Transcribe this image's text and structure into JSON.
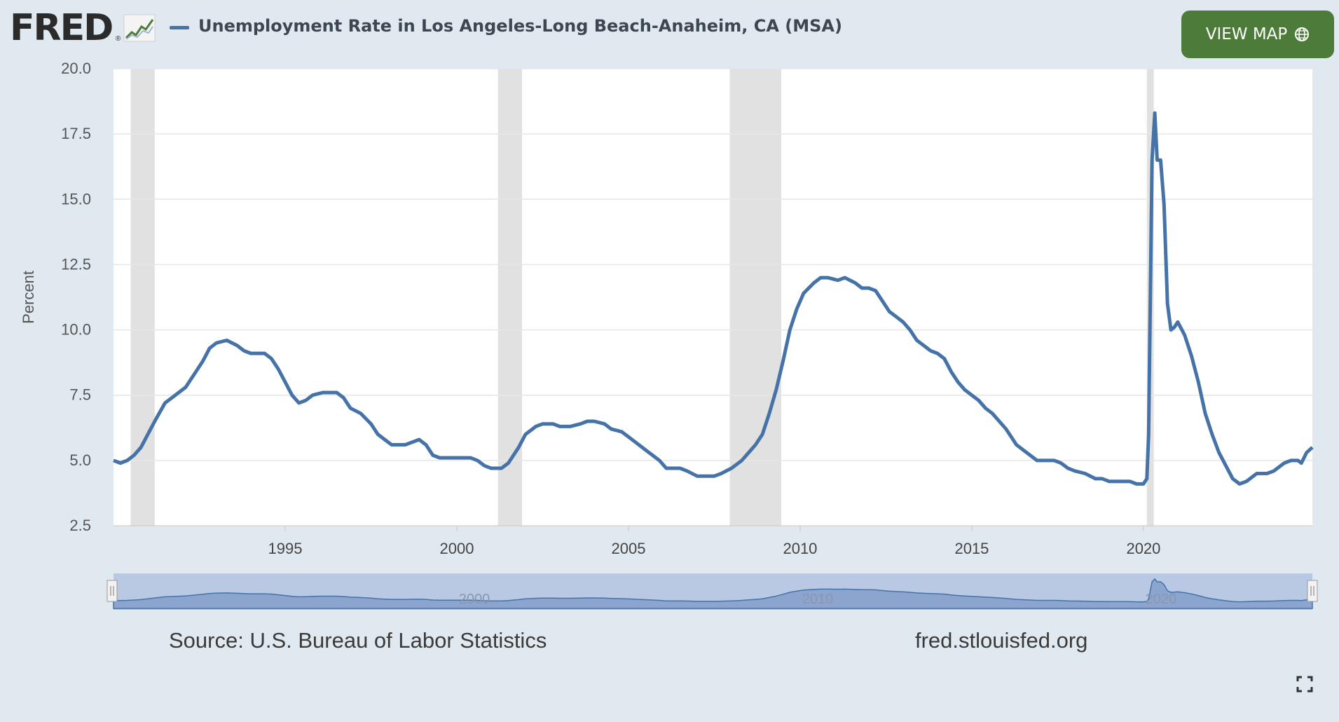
{
  "header": {
    "logo_text": "FRED",
    "logo_reg": "®",
    "title": "Unemployment Rate in Los Angeles-Long Beach-Anaheim, CA (MSA)",
    "view_map_label": "VIEW MAP"
  },
  "footer": {
    "source": "Source: U.S. Bureau of Labor Statistics",
    "site": "fred.stlouisfed.org"
  },
  "colors": {
    "series": "#4572a7",
    "recession": "#e1e1e1",
    "button": "#4d7b3a",
    "background": "#e1e9f0"
  },
  "icons": {
    "logo_graph": "line-graph-icon",
    "globe": "globe-icon",
    "fullscreen": "fullscreen-icon"
  },
  "chart_data": {
    "type": "line",
    "title": "Unemployment Rate in Los Angeles-Long Beach-Anaheim, CA (MSA)",
    "ylabel": "Percent",
    "xlabel": "",
    "ylim": [
      2.5,
      20.0
    ],
    "xlim": [
      1990.0,
      2024.92
    ],
    "yticks": [
      2.5,
      5.0,
      7.5,
      10.0,
      12.5,
      15.0,
      17.5,
      20.0
    ],
    "ytick_labels": [
      "2.5",
      "5.0",
      "7.5",
      "10.0",
      "12.5",
      "15.0",
      "17.5",
      "20.0"
    ],
    "xticks": [
      1995,
      2000,
      2005,
      2010,
      2015,
      2020
    ],
    "xtick_labels": [
      "1995",
      "2000",
      "2005",
      "2010",
      "2015",
      "2020"
    ],
    "navigator_labels": [
      "2000",
      "2010",
      "2020"
    ],
    "recessions": [
      [
        1990.5,
        1991.2
      ],
      [
        2001.2,
        2001.9
      ],
      [
        2007.95,
        2009.45
      ],
      [
        2020.1,
        2020.3
      ]
    ],
    "series": [
      {
        "name": "Unemployment Rate in Los Angeles-Long Beach-Anaheim, CA (MSA)",
        "points": [
          [
            1990.0,
            5.0
          ],
          [
            1990.2,
            4.9
          ],
          [
            1990.4,
            5.0
          ],
          [
            1990.6,
            5.2
          ],
          [
            1990.8,
            5.5
          ],
          [
            1991.0,
            6.0
          ],
          [
            1991.2,
            6.5
          ],
          [
            1991.5,
            7.2
          ],
          [
            1991.8,
            7.5
          ],
          [
            1992.1,
            7.8
          ],
          [
            1992.4,
            8.4
          ],
          [
            1992.6,
            8.8
          ],
          [
            1992.8,
            9.3
          ],
          [
            1993.0,
            9.5
          ],
          [
            1993.3,
            9.6
          ],
          [
            1993.6,
            9.4
          ],
          [
            1993.8,
            9.2
          ],
          [
            1994.0,
            9.1
          ],
          [
            1994.4,
            9.1
          ],
          [
            1994.6,
            8.9
          ],
          [
            1994.8,
            8.5
          ],
          [
            1995.0,
            8.0
          ],
          [
            1995.2,
            7.5
          ],
          [
            1995.4,
            7.2
          ],
          [
            1995.6,
            7.3
          ],
          [
            1995.8,
            7.5
          ],
          [
            1996.1,
            7.6
          ],
          [
            1996.5,
            7.6
          ],
          [
            1996.7,
            7.4
          ],
          [
            1996.9,
            7.0
          ],
          [
            1997.2,
            6.8
          ],
          [
            1997.5,
            6.4
          ],
          [
            1997.7,
            6.0
          ],
          [
            1997.9,
            5.8
          ],
          [
            1998.1,
            5.6
          ],
          [
            1998.5,
            5.6
          ],
          [
            1998.7,
            5.7
          ],
          [
            1998.9,
            5.8
          ],
          [
            1999.1,
            5.6
          ],
          [
            1999.3,
            5.2
          ],
          [
            1999.5,
            5.1
          ],
          [
            2000.0,
            5.1
          ],
          [
            2000.4,
            5.1
          ],
          [
            2000.6,
            5.0
          ],
          [
            2000.8,
            4.8
          ],
          [
            2001.0,
            4.7
          ],
          [
            2001.3,
            4.7
          ],
          [
            2001.5,
            4.9
          ],
          [
            2001.8,
            5.5
          ],
          [
            2002.0,
            6.0
          ],
          [
            2002.3,
            6.3
          ],
          [
            2002.5,
            6.4
          ],
          [
            2002.8,
            6.4
          ],
          [
            2003.0,
            6.3
          ],
          [
            2003.3,
            6.3
          ],
          [
            2003.6,
            6.4
          ],
          [
            2003.8,
            6.5
          ],
          [
            2004.0,
            6.5
          ],
          [
            2004.3,
            6.4
          ],
          [
            2004.5,
            6.2
          ],
          [
            2004.8,
            6.1
          ],
          [
            2005.0,
            5.9
          ],
          [
            2005.3,
            5.6
          ],
          [
            2005.6,
            5.3
          ],
          [
            2005.9,
            5.0
          ],
          [
            2006.1,
            4.7
          ],
          [
            2006.5,
            4.7
          ],
          [
            2006.7,
            4.6
          ],
          [
            2007.0,
            4.4
          ],
          [
            2007.5,
            4.4
          ],
          [
            2007.7,
            4.5
          ],
          [
            2008.0,
            4.7
          ],
          [
            2008.3,
            5.0
          ],
          [
            2008.5,
            5.3
          ],
          [
            2008.7,
            5.6
          ],
          [
            2008.9,
            6.0
          ],
          [
            2009.1,
            6.8
          ],
          [
            2009.3,
            7.7
          ],
          [
            2009.5,
            8.8
          ],
          [
            2009.7,
            10.0
          ],
          [
            2009.9,
            10.8
          ],
          [
            2010.1,
            11.4
          ],
          [
            2010.4,
            11.8
          ],
          [
            2010.6,
            12.0
          ],
          [
            2010.8,
            12.0
          ],
          [
            2011.1,
            11.9
          ],
          [
            2011.3,
            12.0
          ],
          [
            2011.6,
            11.8
          ],
          [
            2011.8,
            11.6
          ],
          [
            2012.0,
            11.6
          ],
          [
            2012.2,
            11.5
          ],
          [
            2012.4,
            11.1
          ],
          [
            2012.6,
            10.7
          ],
          [
            2012.8,
            10.5
          ],
          [
            2013.0,
            10.3
          ],
          [
            2013.2,
            10.0
          ],
          [
            2013.4,
            9.6
          ],
          [
            2013.6,
            9.4
          ],
          [
            2013.8,
            9.2
          ],
          [
            2014.0,
            9.1
          ],
          [
            2014.2,
            8.9
          ],
          [
            2014.4,
            8.4
          ],
          [
            2014.6,
            8.0
          ],
          [
            2014.8,
            7.7
          ],
          [
            2015.0,
            7.5
          ],
          [
            2015.2,
            7.3
          ],
          [
            2015.4,
            7.0
          ],
          [
            2015.6,
            6.8
          ],
          [
            2015.8,
            6.5
          ],
          [
            2016.0,
            6.2
          ],
          [
            2016.3,
            5.6
          ],
          [
            2016.6,
            5.3
          ],
          [
            2016.9,
            5.0
          ],
          [
            2017.2,
            5.0
          ],
          [
            2017.4,
            5.0
          ],
          [
            2017.6,
            4.9
          ],
          [
            2017.8,
            4.7
          ],
          [
            2018.0,
            4.6
          ],
          [
            2018.3,
            4.5
          ],
          [
            2018.6,
            4.3
          ],
          [
            2018.8,
            4.3
          ],
          [
            2019.0,
            4.2
          ],
          [
            2019.3,
            4.2
          ],
          [
            2019.6,
            4.2
          ],
          [
            2019.8,
            4.1
          ],
          [
            2020.0,
            4.1
          ],
          [
            2020.1,
            4.3
          ],
          [
            2020.15,
            6.0
          ],
          [
            2020.25,
            16.5
          ],
          [
            2020.33,
            18.3
          ],
          [
            2020.4,
            16.5
          ],
          [
            2020.5,
            16.5
          ],
          [
            2020.6,
            14.8
          ],
          [
            2020.7,
            11.0
          ],
          [
            2020.8,
            10.0
          ],
          [
            2020.9,
            10.1
          ],
          [
            2021.0,
            10.3
          ],
          [
            2021.2,
            9.8
          ],
          [
            2021.4,
            9.0
          ],
          [
            2021.6,
            8.0
          ],
          [
            2021.8,
            6.8
          ],
          [
            2022.0,
            6.0
          ],
          [
            2022.2,
            5.3
          ],
          [
            2022.4,
            4.8
          ],
          [
            2022.6,
            4.3
          ],
          [
            2022.8,
            4.1
          ],
          [
            2023.0,
            4.2
          ],
          [
            2023.3,
            4.5
          ],
          [
            2023.6,
            4.5
          ],
          [
            2023.8,
            4.6
          ],
          [
            2024.1,
            4.9
          ],
          [
            2024.3,
            5.0
          ],
          [
            2024.5,
            5.0
          ],
          [
            2024.6,
            4.9
          ],
          [
            2024.75,
            5.3
          ],
          [
            2024.92,
            5.5
          ]
        ]
      }
    ]
  }
}
